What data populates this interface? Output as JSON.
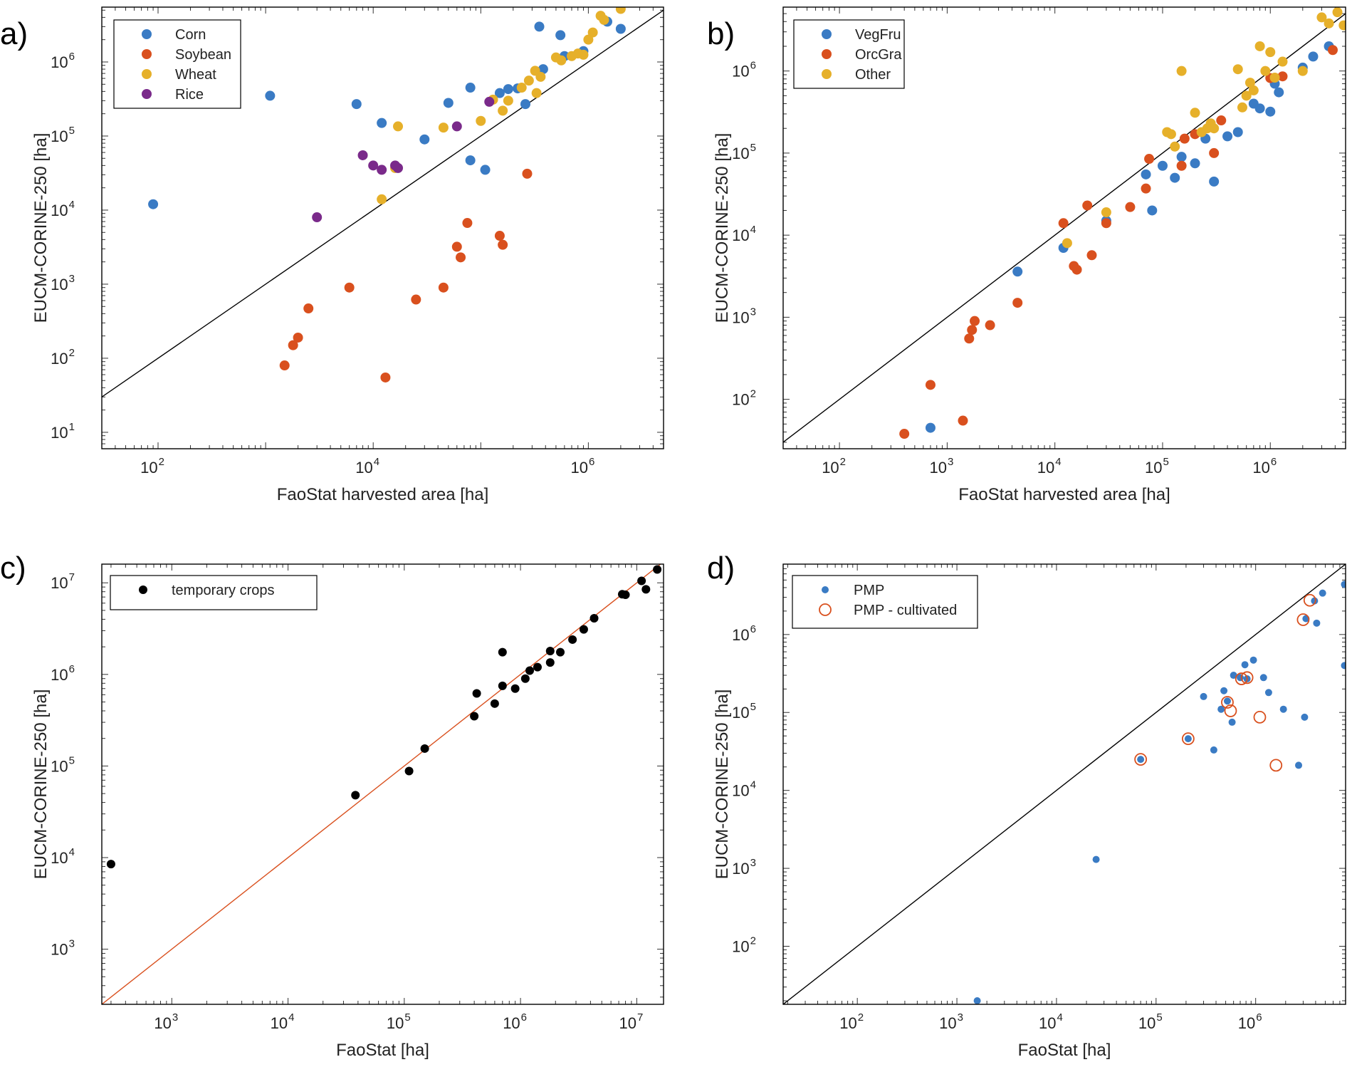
{
  "colors": {
    "blue": "#3a7bc4",
    "orange": "#d9501e",
    "yellow": "#e6b02a",
    "purple": "#7a2a8a",
    "black": "#000000",
    "line_red": "#d9501e"
  },
  "chart_data": [
    {
      "panel": "a)",
      "type": "scatter",
      "xscale": "log",
      "yscale": "log",
      "xlabel": "FaoStat harvested area [ha]",
      "ylabel": "EUCM-CORINE-250 [ha]",
      "xlim": [
        30,
        5000000
      ],
      "ylim": [
        6,
        5500000
      ],
      "xticks": [
        2,
        4,
        6
      ],
      "yticks": [
        1,
        2,
        3,
        4,
        5,
        6
      ],
      "legend": "top-left",
      "reference_line": "1:1",
      "series": [
        {
          "name": "Corn",
          "color": "#3a7bc4",
          "style": "filled",
          "size": 7,
          "points": [
            [
              90,
              12000
            ],
            [
              1100,
              350000
            ],
            [
              7000,
              270000
            ],
            [
              12000,
              150000
            ],
            [
              30000,
              90000
            ],
            [
              50000,
              280000
            ],
            [
              80000,
              450000
            ],
            [
              80000,
              47000
            ],
            [
              110000,
              35000
            ],
            [
              150000,
              380000
            ],
            [
              180000,
              430000
            ],
            [
              220000,
              440000
            ],
            [
              260000,
              270000
            ],
            [
              350000,
              3000000
            ],
            [
              380000,
              800000
            ],
            [
              550000,
              2300000
            ],
            [
              600000,
              1200000
            ],
            [
              900000,
              1400000
            ],
            [
              1500000,
              3500000
            ],
            [
              2000000,
              2800000
            ]
          ]
        },
        {
          "name": "Soybean",
          "color": "#d9501e",
          "style": "filled",
          "size": 7,
          "points": [
            [
              1500,
              80
            ],
            [
              1800,
              150
            ],
            [
              2000,
              190
            ],
            [
              2500,
              470
            ],
            [
              6000,
              900
            ],
            [
              13000,
              55
            ],
            [
              25000,
              620
            ],
            [
              45000,
              900
            ],
            [
              60000,
              3200
            ],
            [
              65000,
              2300
            ],
            [
              75000,
              6700
            ],
            [
              150000,
              4500
            ],
            [
              160000,
              3400
            ],
            [
              270000,
              31000
            ]
          ]
        },
        {
          "name": "Wheat",
          "color": "#e6b02a",
          "style": "filled",
          "size": 7,
          "points": [
            [
              12000,
              14000
            ],
            [
              16000,
              37000
            ],
            [
              17000,
              135000
            ],
            [
              45000,
              130000
            ],
            [
              100000,
              160000
            ],
            [
              130000,
              310000
            ],
            [
              160000,
              220000
            ],
            [
              180000,
              300000
            ],
            [
              240000,
              450000
            ],
            [
              280000,
              560000
            ],
            [
              320000,
              760000
            ],
            [
              330000,
              380000
            ],
            [
              360000,
              630000
            ],
            [
              500000,
              1150000
            ],
            [
              560000,
              1050000
            ],
            [
              700000,
              1200000
            ],
            [
              800000,
              1300000
            ],
            [
              900000,
              1250000
            ],
            [
              1000000,
              2000000
            ],
            [
              1100000,
              2500000
            ],
            [
              1300000,
              4200000
            ],
            [
              1400000,
              3700000
            ],
            [
              2000000,
              5200000
            ]
          ]
        },
        {
          "name": "Rice",
          "color": "#7a2a8a",
          "style": "filled",
          "size": 7,
          "points": [
            [
              3000,
              8000
            ],
            [
              8000,
              55000
            ],
            [
              10000,
              40000
            ],
            [
              12000,
              35000
            ],
            [
              16000,
              40000
            ],
            [
              17000,
              37000
            ],
            [
              60000,
              135000
            ],
            [
              120000,
              290000
            ]
          ]
        }
      ]
    },
    {
      "panel": "b)",
      "type": "scatter",
      "xscale": "log",
      "yscale": "log",
      "xlabel": "FaoStat harvested area [ha]",
      "ylabel": "EUCM-CORINE-250 [ha]",
      "xlim": [
        30,
        5000000
      ],
      "ylim": [
        25,
        6000000
      ],
      "xticks": [
        2,
        3,
        4,
        5,
        6
      ],
      "yticks": [
        2,
        3,
        4,
        5,
        6
      ],
      "legend": "top-left",
      "reference_line": "1:1",
      "series": [
        {
          "name": "VegFru",
          "color": "#3a7bc4",
          "style": "filled",
          "size": 7,
          "points": [
            [
              700,
              45
            ],
            [
              4500,
              3600
            ],
            [
              12000,
              7000
            ],
            [
              30000,
              15000
            ],
            [
              70000,
              55000
            ],
            [
              80000,
              20000
            ],
            [
              100000,
              70000
            ],
            [
              130000,
              50000
            ],
            [
              150000,
              90000
            ],
            [
              200000,
              75000
            ],
            [
              250000,
              150000
            ],
            [
              300000,
              45000
            ],
            [
              400000,
              160000
            ],
            [
              500000,
              180000
            ],
            [
              700000,
              400000
            ],
            [
              800000,
              350000
            ],
            [
              1000000,
              320000
            ],
            [
              1100000,
              700000
            ],
            [
              1200000,
              550000
            ],
            [
              2000000,
              1100000
            ],
            [
              2500000,
              1500000
            ],
            [
              3500000,
              2000000
            ]
          ]
        },
        {
          "name": "OrcGra",
          "color": "#d9501e",
          "style": "filled",
          "size": 7,
          "points": [
            [
              400,
              38
            ],
            [
              700,
              150
            ],
            [
              1400,
              55
            ],
            [
              1600,
              550
            ],
            [
              1700,
              700
            ],
            [
              1800,
              900
            ],
            [
              2500,
              800
            ],
            [
              4500,
              1500
            ],
            [
              12000,
              14000
            ],
            [
              15000,
              4200
            ],
            [
              16000,
              3800
            ],
            [
              20000,
              23000
            ],
            [
              22000,
              5700
            ],
            [
              30000,
              14000
            ],
            [
              50000,
              22000
            ],
            [
              70000,
              37000
            ],
            [
              75000,
              85000
            ],
            [
              150000,
              70000
            ],
            [
              160000,
              150000
            ],
            [
              200000,
              170000
            ],
            [
              300000,
              100000
            ],
            [
              350000,
              250000
            ],
            [
              1000000,
              820000
            ],
            [
              1300000,
              860000
            ],
            [
              3800000,
              1800000
            ]
          ]
        },
        {
          "name": "Other",
          "color": "#e6b02a",
          "style": "filled",
          "size": 7,
          "points": [
            [
              13000,
              8000
            ],
            [
              30000,
              19000
            ],
            [
              110000,
              180000
            ],
            [
              120000,
              170000
            ],
            [
              130000,
              120000
            ],
            [
              150000,
              1000000
            ],
            [
              200000,
              310000
            ],
            [
              230000,
              180000
            ],
            [
              260000,
              200000
            ],
            [
              280000,
              230000
            ],
            [
              300000,
              200000
            ],
            [
              500000,
              1050000
            ],
            [
              550000,
              360000
            ],
            [
              600000,
              500000
            ],
            [
              650000,
              720000
            ],
            [
              700000,
              580000
            ],
            [
              800000,
              2000000
            ],
            [
              900000,
              1000000
            ],
            [
              1000000,
              1700000
            ],
            [
              1100000,
              830000
            ],
            [
              1300000,
              1300000
            ],
            [
              2000000,
              1000000
            ],
            [
              3000000,
              4500000
            ],
            [
              3500000,
              3800000
            ],
            [
              4200000,
              5200000
            ],
            [
              4800000,
              3600000
            ]
          ]
        }
      ]
    },
    {
      "panel": "c)",
      "type": "scatter",
      "xscale": "log",
      "yscale": "log",
      "xlabel": "FaoStat [ha]",
      "ylabel": "EUCM-CORINE-250 [ha]",
      "xlim": [
        250,
        17000000
      ],
      "ylim": [
        250,
        16000000
      ],
      "xticks": [
        3,
        4,
        5,
        6,
        7
      ],
      "yticks": [
        3,
        4,
        5,
        6,
        7
      ],
      "legend": "top-left",
      "reference_line": "1:1",
      "series": [
        {
          "name": "temporary crops",
          "color": "#000000",
          "style": "filled",
          "size": 6,
          "points": [
            [
              300,
              8500
            ],
            [
              38000,
              48000
            ],
            [
              110000,
              88000
            ],
            [
              150000,
              155000
            ],
            [
              400000,
              350000
            ],
            [
              420000,
              620000
            ],
            [
              600000,
              480000
            ],
            [
              700000,
              1750000
            ],
            [
              700000,
              750000
            ],
            [
              900000,
              700000
            ],
            [
              1100000,
              900000
            ],
            [
              1200000,
              1100000
            ],
            [
              1400000,
              1200000
            ],
            [
              1800000,
              1800000
            ],
            [
              1800000,
              1350000
            ],
            [
              2200000,
              1750000
            ],
            [
              2800000,
              2400000
            ],
            [
              3500000,
              3100000
            ],
            [
              4300000,
              4100000
            ],
            [
              7500000,
              7500000
            ],
            [
              8000000,
              7400000
            ],
            [
              11000000,
              10500000
            ],
            [
              12000000,
              8500000
            ],
            [
              15000000,
              14000000
            ]
          ]
        }
      ]
    },
    {
      "panel": "d)",
      "type": "scatter",
      "xscale": "log",
      "yscale": "log",
      "xlabel": "FaoStat [ha]",
      "ylabel": "EUCM-CORINE-250 [ha]",
      "xlim": [
        18,
        8000000
      ],
      "ylim": [
        18,
        8000000
      ],
      "xticks": [
        2,
        3,
        4,
        5,
        6
      ],
      "yticks": [
        2,
        3,
        4,
        5,
        6
      ],
      "legend": "top-left",
      "reference_line": "1:1",
      "series": [
        {
          "name": "PMP",
          "color": "#3a7bc4",
          "style": "filled",
          "size": 5,
          "points": [
            [
              1600,
              20
            ],
            [
              25000,
              1300
            ],
            [
              70000,
              25000
            ],
            [
              210000,
              46000
            ],
            [
              300000,
              160000
            ],
            [
              380000,
              33000
            ],
            [
              450000,
              110000
            ],
            [
              480000,
              190000
            ],
            [
              520000,
              140000
            ],
            [
              580000,
              75000
            ],
            [
              600000,
              300000
            ],
            [
              700000,
              280000
            ],
            [
              780000,
              410000
            ],
            [
              820000,
              270000
            ],
            [
              950000,
              470000
            ],
            [
              1200000,
              280000
            ],
            [
              1350000,
              180000
            ],
            [
              1900000,
              110000
            ],
            [
              2700000,
              21000
            ],
            [
              3100000,
              87000
            ],
            [
              3200000,
              1600000
            ],
            [
              3900000,
              2700000
            ],
            [
              4100000,
              1400000
            ],
            [
              4700000,
              3400000
            ],
            [
              7800000,
              4400000
            ],
            [
              7800000,
              400000
            ]
          ]
        },
        {
          "name": "PMP - cultivated",
          "color": "#d9501e",
          "style": "open",
          "size": 8,
          "points": [
            [
              70000,
              25000
            ],
            [
              210000,
              46000
            ],
            [
              520000,
              135000
            ],
            [
              560000,
              105000
            ],
            [
              720000,
              270000
            ],
            [
              820000,
              280000
            ],
            [
              1100000,
              87000
            ],
            [
              1600000,
              21000
            ],
            [
              3000000,
              1550000
            ],
            [
              3500000,
              2750000
            ]
          ]
        }
      ]
    }
  ]
}
